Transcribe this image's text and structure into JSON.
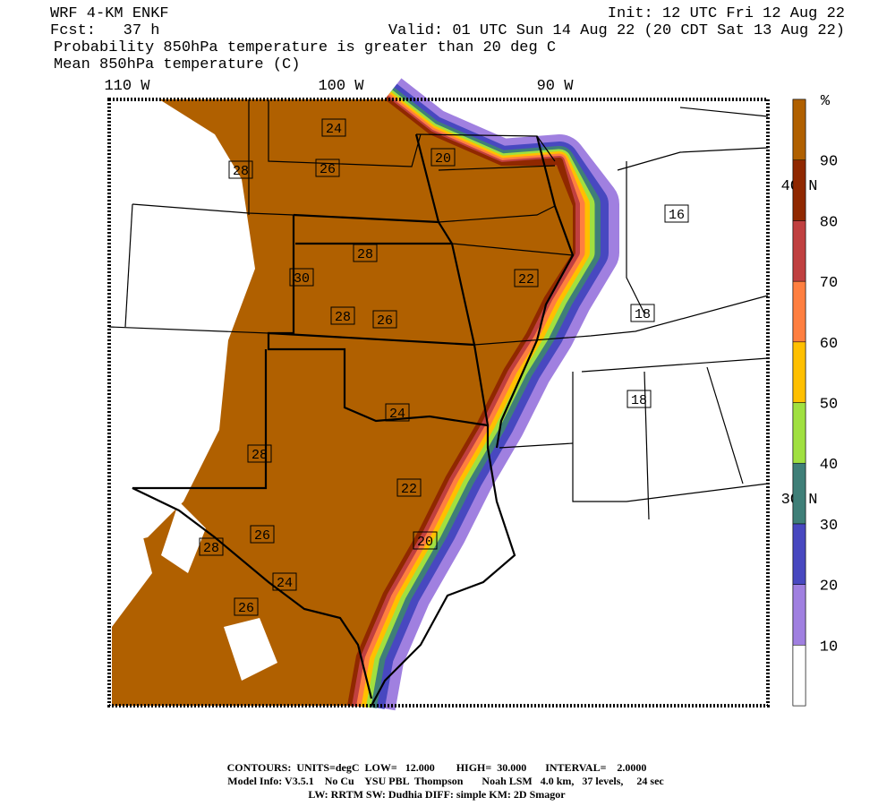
{
  "header": {
    "model": "WRF 4-KM ENKF",
    "init": "Init: 12 UTC Fri 12 Aug 22",
    "forecast": "Fcst:   37 h",
    "valid": "Valid: 01 UTC Sun 14 Aug 22 (20 CDT Sat 13 Aug 22)",
    "title": "Probability 850hPa temperature is greater than 20 deg C",
    "subtitle": "Mean 850hPa temperature (C)"
  },
  "map": {
    "longitude_labels": [
      "110 W",
      "100 W",
      "90 W"
    ],
    "latitude_labels": [
      "40 N",
      "30 N"
    ],
    "contour_labels": [
      "24",
      "28",
      "26",
      "20",
      "16",
      "28",
      "30",
      "22",
      "28",
      "26",
      "18",
      "24",
      "18",
      "28",
      "22",
      "26",
      "20",
      "28",
      "24",
      "26"
    ]
  },
  "colorbar": {
    "unit": "%",
    "ticks": [
      10,
      20,
      30,
      40,
      50,
      60,
      70,
      80,
      90
    ],
    "colors": [
      "#ffffff",
      "#a080e0",
      "#4848c0",
      "#3f7f78",
      "#a0e040",
      "#ffc000",
      "#ff7f40",
      "#c04040",
      "#902800",
      "#b06000"
    ]
  },
  "footer": {
    "contours": "CONTOURS:  UNITS=degC  LOW=   12.000        HIGH=  30.000       INTERVAL=    2.0000",
    "model_info": "Model Info: V3.5.1    No Cu    YSU PBL  Thompson       Noah LSM   4.0 km,   37 levels,     24 sec",
    "physics": "LW: RRTM SW: Dudhia  DIFF: simple KM: 2D Smagor"
  }
}
